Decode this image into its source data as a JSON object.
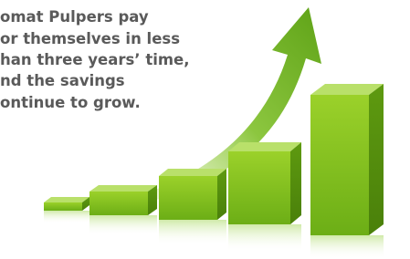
{
  "text": {
    "lines": [
      "omat Pulpers pay",
      "or themselves in less",
      "han three years’ time,",
      "nd the savings",
      "ontinue to grow."
    ]
  }
}
